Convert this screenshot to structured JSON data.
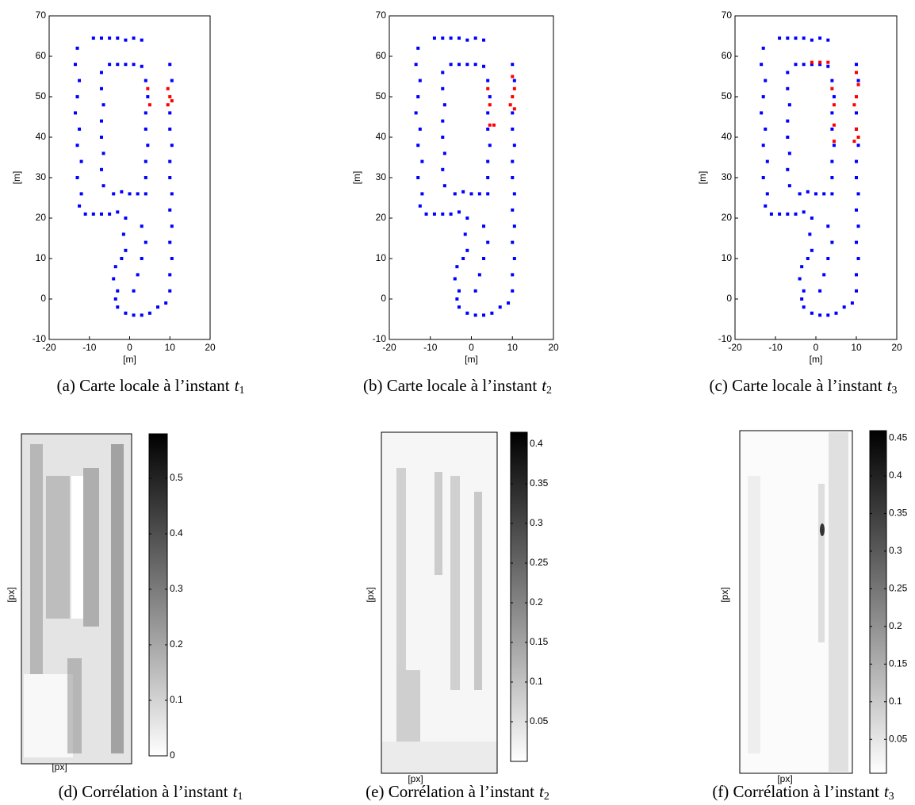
{
  "chart_data": [
    {
      "type": "scatter",
      "xlabel": "[m]",
      "ylabel": "[m]",
      "xlim": [
        -20,
        20
      ],
      "ylim": [
        -10,
        70
      ],
      "xticks": [
        -20,
        -10,
        0,
        10,
        20
      ],
      "yticks": [
        -10,
        0,
        10,
        20,
        30,
        40,
        50,
        60,
        70
      ],
      "caption": "(a) Carte locale à l’instant",
      "caption_math": "t",
      "caption_sub": "1",
      "series": [
        {
          "color": "#0000ff",
          "x": [
            -9,
            -7,
            -5,
            -3,
            -1,
            1,
            3,
            -13,
            -13.5,
            -12.5,
            -13,
            -13.5,
            -12.5,
            -13,
            -12,
            -13,
            -12,
            -12.5,
            -11,
            -9,
            -7,
            -5,
            -3,
            -7,
            -7,
            -6.5,
            -7,
            -7,
            -6.5,
            -7,
            -6.5,
            -5,
            -3,
            -1,
            1,
            3,
            4,
            4.5,
            4,
            4,
            4.5,
            4,
            4,
            -4,
            -2,
            0,
            2,
            4,
            10,
            10.5,
            10,
            10,
            10.5,
            10,
            10,
            10.5,
            10,
            10.5,
            10,
            10.5,
            10,
            10,
            9,
            -1,
            -1.5,
            -1,
            -2,
            -3.5,
            -4,
            -3,
            -3.5,
            -3,
            -1,
            1,
            3,
            5,
            7,
            1,
            2,
            3,
            4,
            3
          ],
          "values": [
            64.5,
            64.5,
            64.5,
            64.5,
            64,
            64.5,
            64,
            62,
            58,
            54,
            50,
            46,
            42,
            38,
            34,
            30,
            26,
            23,
            21,
            21,
            21,
            21,
            21.5,
            56,
            52,
            48,
            44,
            40,
            36,
            32,
            28,
            58,
            58,
            58,
            58,
            57.5,
            54,
            50,
            46,
            42,
            38,
            34,
            30,
            26,
            26.5,
            26,
            26,
            26,
            58,
            54,
            46,
            42,
            38,
            34,
            30,
            26,
            22,
            18,
            14,
            10,
            6,
            2,
            -1,
            20,
            16,
            12,
            10,
            8,
            5,
            2,
            0,
            -2,
            -3.5,
            -4,
            -4,
            -3.5,
            -2,
            2,
            6,
            10,
            14,
            18
          ]
        },
        {
          "color": "#ff0000",
          "x": [
            4.5,
            5,
            9.5,
            10,
            9.5,
            10.5
          ],
          "values": [
            52,
            48,
            52,
            50,
            48,
            49
          ]
        }
      ]
    },
    {
      "type": "scatter",
      "xlabel": "[m]",
      "ylabel": "[m]",
      "xlim": [
        -20,
        20
      ],
      "ylim": [
        -10,
        70
      ],
      "xticks": [
        -20,
        -10,
        0,
        10,
        20
      ],
      "yticks": [
        -10,
        0,
        10,
        20,
        30,
        40,
        50,
        60,
        70
      ],
      "caption": "(b) Carte locale à l’instant",
      "caption_math": "t",
      "caption_sub": "2",
      "series": [
        {
          "color": "#0000ff",
          "x": [
            -9,
            -7,
            -5,
            -3,
            -1,
            1,
            3,
            -13,
            -13.5,
            -12.5,
            -13,
            -13.5,
            -12.5,
            -13,
            -12,
            -13,
            -12,
            -12.5,
            -11,
            -9,
            -7,
            -5,
            -3,
            -7,
            -7,
            -6.5,
            -7,
            -7,
            -6.5,
            -7,
            -6.5,
            -5,
            -3,
            -1,
            1,
            3,
            4,
            4.5,
            4,
            4,
            4.5,
            4,
            4,
            -4,
            -2,
            0,
            2,
            4,
            10,
            10.5,
            10,
            10,
            10.5,
            10,
            10,
            10.5,
            10,
            10.5,
            10,
            10.5,
            10,
            10,
            9,
            -1,
            -1.5,
            -1,
            -2,
            -3.5,
            -4,
            -3,
            -3.5,
            -3,
            -1,
            1,
            3,
            5,
            7,
            1,
            2,
            3,
            4,
            3
          ],
          "values": [
            64.5,
            64.5,
            64.5,
            64.5,
            64,
            64.5,
            64,
            62,
            58,
            54,
            50,
            46,
            42,
            38,
            34,
            30,
            26,
            23,
            21,
            21,
            21,
            21,
            21.5,
            56,
            52,
            48,
            44,
            40,
            36,
            32,
            28,
            58,
            58,
            58,
            58,
            57.5,
            54,
            50,
            46,
            42,
            38,
            34,
            30,
            26,
            26.5,
            26,
            26,
            26,
            58,
            54,
            46,
            42,
            38,
            34,
            30,
            26,
            22,
            18,
            14,
            10,
            6,
            2,
            -1,
            20,
            16,
            12,
            10,
            8,
            5,
            2,
            0,
            -2,
            -3.5,
            -4,
            -4,
            -3.5,
            -2,
            2,
            6,
            10,
            14,
            18
          ]
        },
        {
          "color": "#ff0000",
          "x": [
            4,
            4.5,
            10,
            10.5,
            10,
            9.5,
            10.5,
            4.5,
            5.5
          ],
          "values": [
            52,
            48,
            55,
            52,
            50,
            48,
            47,
            43,
            43
          ]
        }
      ]
    },
    {
      "type": "scatter",
      "xlabel": "[m]",
      "ylabel": "[m]",
      "xlim": [
        -20,
        20
      ],
      "ylim": [
        -10,
        70
      ],
      "xticks": [
        -20,
        -10,
        0,
        10,
        20
      ],
      "yticks": [
        -10,
        0,
        10,
        20,
        30,
        40,
        50,
        60,
        70
      ],
      "caption": "(c) Carte locale à l’instant",
      "caption_math": "t",
      "caption_sub": "3",
      "series": [
        {
          "color": "#0000ff",
          "x": [
            -9,
            -7,
            -5,
            -3,
            -1,
            1,
            3,
            -13,
            -13.5,
            -12.5,
            -13,
            -13.5,
            -12.5,
            -13,
            -12,
            -13,
            -12,
            -12.5,
            -11,
            -9,
            -7,
            -5,
            -3,
            -7,
            -7,
            -6.5,
            -7,
            -7,
            -6.5,
            -7,
            -6.5,
            -5,
            -3,
            -1,
            1,
            3,
            4,
            4.5,
            4,
            4,
            4.5,
            4,
            4,
            -4,
            -2,
            0,
            2,
            4,
            10,
            10.5,
            10,
            10,
            10.5,
            10,
            10,
            10.5,
            10,
            10.5,
            10,
            10.5,
            10,
            10,
            9,
            -1,
            -1.5,
            -1,
            -2,
            -3.5,
            -4,
            -3,
            -3.5,
            -3,
            -1,
            1,
            3,
            5,
            7,
            1,
            2,
            3,
            4,
            3
          ],
          "values": [
            64.5,
            64.5,
            64.5,
            64.5,
            64,
            64.5,
            64,
            62,
            58,
            54,
            50,
            46,
            42,
            38,
            34,
            30,
            26,
            23,
            21,
            21,
            21,
            21,
            21.5,
            56,
            52,
            48,
            44,
            40,
            36,
            32,
            28,
            58,
            58,
            58,
            58,
            57.5,
            54,
            50,
            46,
            42,
            38,
            34,
            30,
            26,
            26.5,
            26,
            26,
            26,
            58,
            54,
            46,
            42,
            38,
            34,
            30,
            26,
            22,
            18,
            14,
            10,
            6,
            2,
            -1,
            20,
            16,
            12,
            10,
            8,
            5,
            2,
            0,
            -2,
            -3.5,
            -4,
            -4,
            -3.5,
            -2,
            2,
            6,
            10,
            14,
            18
          ]
        },
        {
          "color": "#ff0000",
          "x": [
            -1,
            1,
            3,
            4,
            4.5,
            10,
            10.5,
            10,
            9.5,
            4.5,
            4.5,
            10,
            10.5,
            9.5
          ],
          "values": [
            58.5,
            58.5,
            58.5,
            52,
            48,
            56,
            53,
            50,
            48,
            43,
            39,
            42,
            40,
            39
          ]
        }
      ]
    },
    {
      "type": "heatmap",
      "xlabel": "[px]",
      "ylabel": "[px]",
      "clim": [
        0,
        0.58
      ],
      "cticks": [
        0,
        0.1,
        0.2,
        0.3,
        0.4,
        0.5
      ],
      "colormap": [
        "#ffffff",
        "#000000"
      ],
      "caption": "(d) Corrélation à l’instant",
      "caption_math": "t",
      "caption_sub": "1"
    },
    {
      "type": "heatmap",
      "xlabel": "[px]",
      "ylabel": "[px]",
      "clim": [
        0,
        0.415
      ],
      "cticks": [
        0.05,
        0.1,
        0.15,
        0.2,
        0.25,
        0.3,
        0.35,
        0.4
      ],
      "colormap": [
        "#ffffff",
        "#000000"
      ],
      "caption": "(e) Corrélation à l’instant",
      "caption_math": "t",
      "caption_sub": "2"
    },
    {
      "type": "heatmap",
      "xlabel": "[px]",
      "ylabel": "[px]",
      "clim": [
        0.005,
        0.46
      ],
      "cticks": [
        0.05,
        0.1,
        0.15,
        0.2,
        0.25,
        0.3,
        0.35,
        0.4,
        0.45
      ],
      "colormap": [
        "#ffffff",
        "#000000"
      ],
      "caption": "(f) Corrélation à l’instant",
      "caption_math": "t",
      "caption_sub": "3"
    }
  ]
}
